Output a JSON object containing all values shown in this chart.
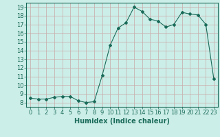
{
  "x": [
    0,
    1,
    2,
    3,
    4,
    5,
    6,
    7,
    8,
    9,
    10,
    11,
    12,
    13,
    14,
    15,
    16,
    17,
    18,
    19,
    20,
    21,
    22,
    23
  ],
  "y": [
    8.5,
    8.4,
    8.4,
    8.6,
    8.7,
    8.7,
    8.2,
    8.0,
    8.1,
    11.1,
    14.6,
    16.6,
    17.2,
    19.0,
    18.5,
    17.6,
    17.4,
    16.7,
    17.0,
    18.4,
    18.2,
    18.1,
    17.0,
    10.7
  ],
  "line_color": "#1a6b5a",
  "marker": "D",
  "marker_size": 2,
  "bg_color": "#cceee8",
  "grid_major_color": "#b8b8b8",
  "grid_minor_color": "#d4d4d4",
  "xlabel": "Humidex (Indice chaleur)",
  "xlim": [
    -0.5,
    23.5
  ],
  "ylim": [
    7.5,
    19.5
  ],
  "yticks": [
    8,
    9,
    10,
    11,
    12,
    13,
    14,
    15,
    16,
    17,
    18,
    19
  ],
  "xticks": [
    0,
    1,
    2,
    3,
    4,
    5,
    6,
    7,
    8,
    9,
    10,
    11,
    12,
    13,
    14,
    15,
    16,
    17,
    18,
    19,
    20,
    21,
    22,
    23
  ],
  "label_fontsize": 7,
  "tick_fontsize": 6,
  "tick_color": "#1a6b5a"
}
